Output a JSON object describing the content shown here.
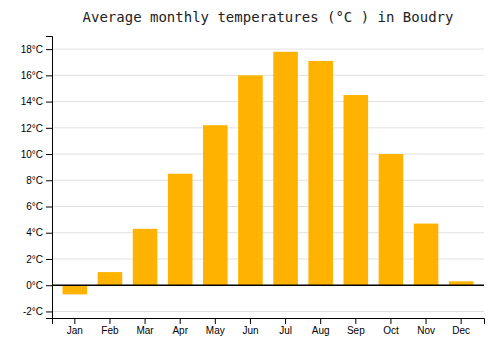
{
  "chart_data": {
    "type": "bar",
    "title": "Average monthly temperatures (°C ) in Boudry",
    "categories": [
      "Jan",
      "Feb",
      "Mar",
      "Apr",
      "May",
      "Jun",
      "Jul",
      "Aug",
      "Sep",
      "Oct",
      "Nov",
      "Dec"
    ],
    "values": [
      -0.7,
      1.0,
      4.3,
      8.5,
      12.2,
      16.0,
      17.8,
      17.1,
      14.5,
      10.0,
      4.7,
      0.3
    ],
    "color": "#FFB300",
    "ylim": [
      -2.5,
      19
    ],
    "yticks": [
      {
        "value": -2,
        "label": "-2°C"
      },
      {
        "value": 0,
        "label": "0°C"
      },
      {
        "value": 2,
        "label": "2°C"
      },
      {
        "value": 4,
        "label": "4°C"
      },
      {
        "value": 6,
        "label": "6°C"
      },
      {
        "value": 8,
        "label": "8°C"
      },
      {
        "value": 10,
        "label": "10°C"
      },
      {
        "value": 12,
        "label": "12°C"
      },
      {
        "value": 14,
        "label": "14°C"
      },
      {
        "value": 16,
        "label": "16°C"
      },
      {
        "value": 18,
        "label": "18°C"
      }
    ],
    "grid": true
  }
}
